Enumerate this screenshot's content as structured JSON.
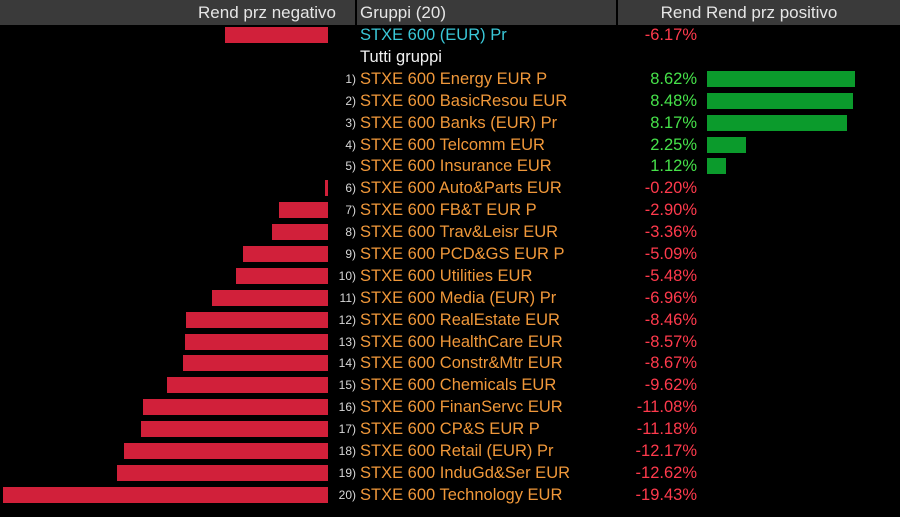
{
  "header": {
    "negative_label": "Rend prz negativo",
    "groups_label": "Gruppi (20)",
    "positive_label": "Rend Rend prz positivo"
  },
  "index_row": {
    "name": "STXE 600 (EUR) Pr",
    "value": "-6.17%",
    "return": -6.17
  },
  "group_title": "Tutti gruppi",
  "rows": [
    {
      "rank": "1)",
      "name": "STXE 600 Energy EUR P",
      "value": "8.62%",
      "return": 8.62
    },
    {
      "rank": "2)",
      "name": "STXE 600 BasicResou EUR",
      "value": "8.48%",
      "return": 8.48
    },
    {
      "rank": "3)",
      "name": "STXE 600 Banks (EUR) Pr",
      "value": "8.17%",
      "return": 8.17
    },
    {
      "rank": "4)",
      "name": "STXE 600 Telcomm EUR",
      "value": "2.25%",
      "return": 2.25
    },
    {
      "rank": "5)",
      "name": "STXE 600 Insurance EUR",
      "value": "1.12%",
      "return": 1.12
    },
    {
      "rank": "6)",
      "name": "STXE 600 Auto&Parts EUR",
      "value": "-0.20%",
      "return": -0.2
    },
    {
      "rank": "7)",
      "name": "STXE 600 FB&T EUR P",
      "value": "-2.90%",
      "return": -2.9
    },
    {
      "rank": "8)",
      "name": "STXE 600 Trav&Leisr EUR",
      "value": "-3.36%",
      "return": -3.36
    },
    {
      "rank": "9)",
      "name": "STXE 600 PCD&GS EUR P",
      "value": "-5.09%",
      "return": -5.09
    },
    {
      "rank": "10)",
      "name": "STXE 600 Utilities EUR",
      "value": "-5.48%",
      "return": -5.48
    },
    {
      "rank": "11)",
      "name": "STXE 600 Media (EUR) Pr",
      "value": "-6.96%",
      "return": -6.96
    },
    {
      "rank": "12)",
      "name": "STXE 600 RealEstate EUR",
      "value": "-8.46%",
      "return": -8.46
    },
    {
      "rank": "13)",
      "name": "STXE 600 HealthCare EUR",
      "value": "-8.57%",
      "return": -8.57
    },
    {
      "rank": "14)",
      "name": "STXE 600 Constr&Mtr EUR",
      "value": "-8.67%",
      "return": -8.67
    },
    {
      "rank": "15)",
      "name": "STXE 600 Chemicals EUR",
      "value": "-9.62%",
      "return": -9.62
    },
    {
      "rank": "16)",
      "name": "STXE 600 FinanServc EUR",
      "value": "-11.08%",
      "return": -11.08
    },
    {
      "rank": "17)",
      "name": "STXE 600 CP&S EUR P",
      "value": "-11.18%",
      "return": -11.18
    },
    {
      "rank": "18)",
      "name": "STXE 600 Retail (EUR) Pr",
      "value": "-12.17%",
      "return": -12.17
    },
    {
      "rank": "19)",
      "name": "STXE 600 InduGd&Ser EUR",
      "value": "-12.62%",
      "return": -12.62
    },
    {
      "rank": "20)",
      "name": "STXE 600 Technology EUR",
      "value": "-19.43%",
      "return": -19.43
    }
  ],
  "colors": {
    "negative": "#d1203a",
    "positive": "#0b9b2c",
    "name_text": "#f0983a",
    "index_text": "#3ac8d8"
  }
}
